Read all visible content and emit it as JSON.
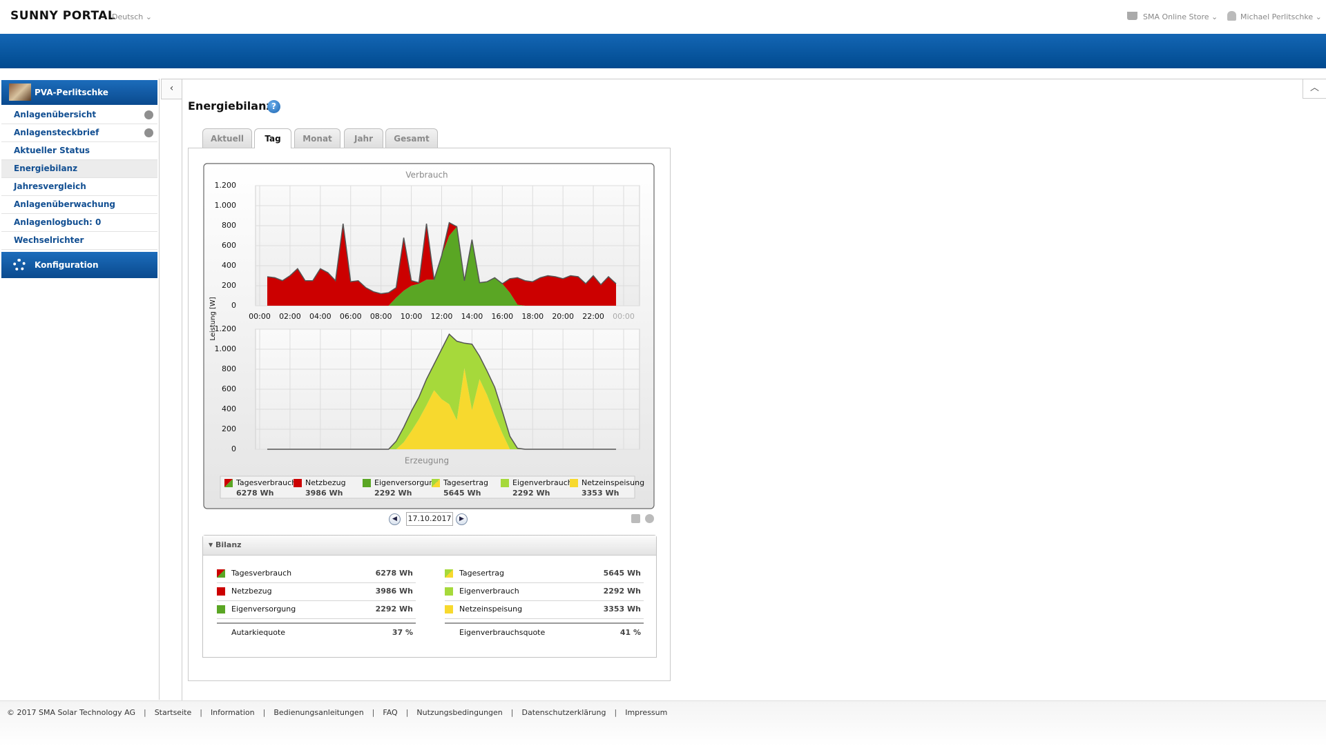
{
  "header": {
    "brand": "SUNNY PORTAL",
    "language": "Deutsch",
    "store": "SMA Online Store",
    "user": "Michael Perlitschke"
  },
  "sidebar": {
    "plant": "PVA-Perlitschke",
    "items": [
      "Anlagenübersicht",
      "Anlagensteckbrief",
      "Aktueller Status",
      "Energiebilanz",
      "Jahresvergleich",
      "Anlagenüberwachung",
      "Anlagenlogbuch: 0",
      "Wechselrichter"
    ],
    "config": "Konfiguration"
  },
  "content": {
    "title": "Energiebilanz",
    "tabs": [
      "Aktuell",
      "Tag",
      "Monat",
      "Jahr",
      "Gesamt"
    ],
    "date": "17.10.2017"
  },
  "chart_data": [
    {
      "type": "area",
      "title": "Verbrauch",
      "y_label": "Leistung [W]",
      "total": {
        "name": "Tagesverbrauch",
        "label": "6278 Wh"
      },
      "x": [
        0.5,
        1,
        1.5,
        2,
        2.5,
        3,
        3.5,
        4,
        4.5,
        5,
        5.5,
        6,
        6.5,
        7,
        7.5,
        8,
        8.5,
        9,
        9.5,
        10,
        10.5,
        11,
        11.5,
        12,
        12.5,
        13,
        13.5,
        14,
        14.5,
        15,
        15.5,
        16,
        16.5,
        17,
        17.5,
        18,
        18.5,
        19,
        19.5,
        20,
        20.5,
        21,
        21.5,
        22,
        22.5,
        23,
        23.5
      ],
      "series": [
        {
          "name": "Eigenversorgung",
          "color": "#5aa624",
          "total_label": "2292 Wh",
          "values": [
            0,
            0,
            0,
            0,
            0,
            0,
            0,
            0,
            0,
            0,
            0,
            0,
            0,
            0,
            0,
            0,
            0,
            80,
            150,
            200,
            220,
            260,
            260,
            500,
            700,
            790,
            250,
            660,
            230,
            240,
            280,
            220,
            130,
            10,
            0,
            0,
            0,
            0,
            0,
            0,
            0,
            0,
            0,
            0,
            0,
            0,
            0
          ]
        },
        {
          "name": "Netzbezug",
          "color": "#cc0000",
          "total_label": "3986 Wh",
          "values": [
            290,
            280,
            250,
            300,
            370,
            250,
            250,
            370,
            330,
            250,
            820,
            240,
            250,
            180,
            140,
            120,
            130,
            100,
            530,
            50,
            10,
            560,
            0,
            0,
            130,
            0,
            0,
            0,
            0,
            0,
            0,
            0,
            140,
            270,
            250,
            240,
            280,
            300,
            290,
            270,
            300,
            290,
            220,
            300,
            210,
            290,
            220
          ]
        }
      ],
      "xlim": [
        0,
        24
      ],
      "xticks": [
        {
          "value": 0,
          "label": "00:00"
        },
        {
          "value": 2,
          "label": "02:00"
        },
        {
          "value": 4,
          "label": "04:00"
        },
        {
          "value": 6,
          "label": "06:00"
        },
        {
          "value": 8,
          "label": "08:00"
        },
        {
          "value": 10,
          "label": "10:00"
        },
        {
          "value": 12,
          "label": "12:00"
        },
        {
          "value": 14,
          "label": "14:00"
        },
        {
          "value": 16,
          "label": "16:00"
        },
        {
          "value": 18,
          "label": "18:00"
        },
        {
          "value": 20,
          "label": "20:00"
        },
        {
          "value": 22,
          "label": "22:00"
        },
        {
          "value": 24,
          "label": "00:00"
        }
      ],
      "ylim": [
        0,
        1200
      ],
      "yticks": [
        0,
        200,
        400,
        600,
        800,
        {
          "value": 1000,
          "label": "1.000"
        },
        {
          "value": 1200,
          "label": "1.200"
        }
      ],
      "grid": true
    },
    {
      "type": "area",
      "title": "Erzeugung",
      "total": {
        "name": "Tagesertrag",
        "label": "5645 Wh"
      },
      "x": [
        0.5,
        1,
        1.5,
        2,
        2.5,
        3,
        3.5,
        4,
        4.5,
        5,
        5.5,
        6,
        6.5,
        7,
        7.5,
        8,
        8.5,
        9,
        9.5,
        10,
        10.5,
        11,
        11.5,
        12,
        12.5,
        13,
        13.5,
        14,
        14.5,
        15,
        15.5,
        16,
        16.5,
        17,
        17.5,
        18,
        18.5,
        19,
        19.5,
        20,
        20.5,
        21,
        21.5,
        22,
        22.5,
        23,
        23.5
      ],
      "series": [
        {
          "name": "Netzeinspeisung",
          "color": "#f7d92e",
          "total_label": "3353 Wh",
          "values": [
            0,
            0,
            0,
            0,
            0,
            0,
            0,
            0,
            0,
            0,
            0,
            0,
            0,
            0,
            0,
            0,
            0,
            0,
            70,
            180,
            300,
            440,
            590,
            500,
            450,
            290,
            810,
            390,
            700,
            540,
            340,
            160,
            0,
            0,
            0,
            0,
            0,
            0,
            0,
            0,
            0,
            0,
            0,
            0,
            0,
            0,
            0
          ]
        },
        {
          "name": "Eigenverbrauch",
          "color": "#a6d93b",
          "total_label": "2292 Wh",
          "values": [
            0,
            0,
            0,
            0,
            0,
            0,
            0,
            0,
            0,
            0,
            0,
            0,
            0,
            0,
            0,
            0,
            0,
            80,
            150,
            200,
            220,
            260,
            260,
            500,
            700,
            790,
            250,
            660,
            230,
            240,
            280,
            220,
            130,
            10,
            0,
            0,
            0,
            0,
            0,
            0,
            0,
            0,
            0,
            0,
            0,
            0,
            0
          ]
        }
      ],
      "xlim": [
        0,
        24
      ],
      "ylim": [
        0,
        1200
      ],
      "yticks": [
        0,
        200,
        400,
        600,
        800,
        {
          "value": 1000,
          "label": "1.000"
        },
        {
          "value": 1200,
          "label": "1.200"
        }
      ],
      "grid": true
    }
  ],
  "bilanz": {
    "title": "Bilanz",
    "left_ratio": {
      "label": "Autarkiequote",
      "value": "37 %"
    },
    "right_ratio": {
      "label": "Eigenverbrauchsquote",
      "value": "41 %"
    }
  },
  "footer": {
    "copyright": "© 2017 SMA Solar Technology AG",
    "links": [
      "Startseite",
      "Information",
      "Bedienungsanleitungen",
      "FAQ",
      "Nutzungsbedingungen",
      "Datenschutzerklärung",
      "Impressum"
    ]
  }
}
